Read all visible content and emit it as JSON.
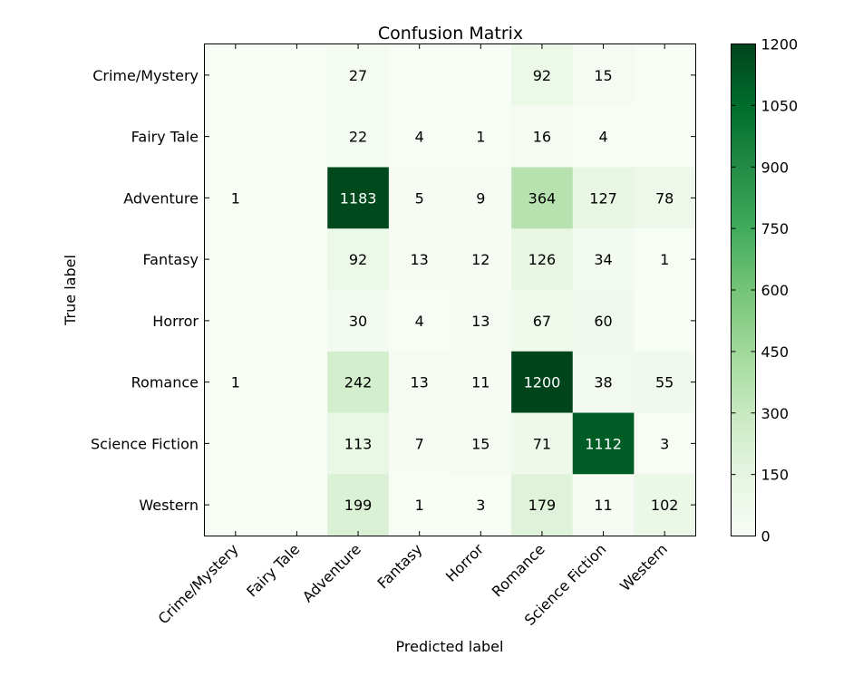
{
  "chart_data": {
    "type": "heatmap",
    "title": "Confusion Matrix",
    "xlabel": "Predicted label",
    "ylabel": "True label",
    "row_labels": [
      "Crime/Mystery",
      "Fairy Tale",
      "Adventure",
      "Fantasy",
      "Horror",
      "Romance",
      "Science Fiction",
      "Western"
    ],
    "col_labels": [
      "Crime/Mystery",
      "Fairy Tale",
      "Adventure",
      "Fantasy",
      "Horror",
      "Romance",
      "Science Fiction",
      "Western"
    ],
    "values": [
      [
        0,
        0,
        27,
        0,
        0,
        92,
        15,
        0
      ],
      [
        0,
        0,
        22,
        4,
        1,
        16,
        4,
        0
      ],
      [
        1,
        0,
        1183,
        5,
        9,
        364,
        127,
        78
      ],
      [
        0,
        0,
        92,
        13,
        12,
        126,
        34,
        1
      ],
      [
        0,
        0,
        30,
        4,
        13,
        67,
        60,
        0
      ],
      [
        1,
        0,
        242,
        13,
        11,
        1200,
        38,
        55
      ],
      [
        0,
        0,
        113,
        7,
        15,
        71,
        1112,
        3
      ],
      [
        0,
        0,
        199,
        1,
        3,
        179,
        11,
        102
      ]
    ],
    "colorbar": {
      "range": [
        0,
        1200
      ],
      "ticks": [
        0,
        150,
        300,
        450,
        600,
        750,
        900,
        1050,
        1200
      ],
      "colormap": "Greens"
    },
    "grid": false
  }
}
